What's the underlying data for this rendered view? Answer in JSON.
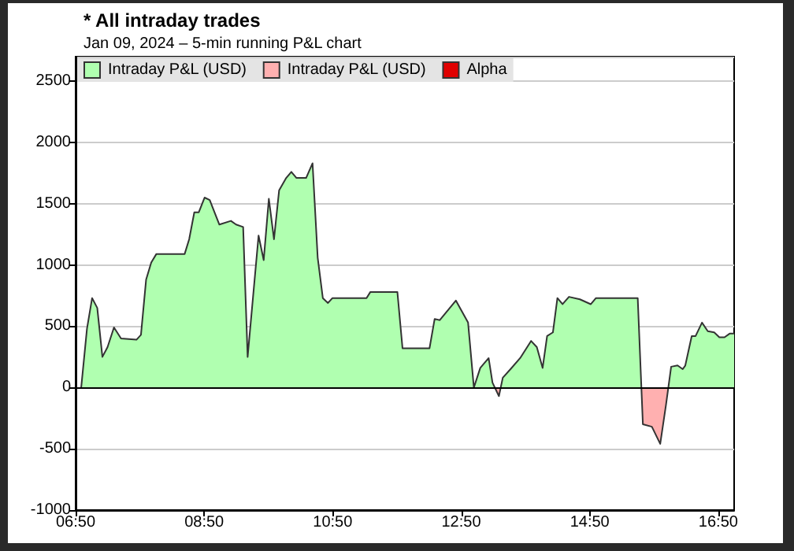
{
  "chart_data": {
    "type": "area",
    "title": "* All intraday trades",
    "subtitle": "Jan 09, 2024 – 5-min running P&L chart",
    "x": [
      6.92,
      7.01,
      7.09,
      7.17,
      7.25,
      7.33,
      7.43,
      7.54,
      7.78,
      7.85,
      7.93,
      8.01,
      8.09,
      8.53,
      8.6,
      8.68,
      8.75,
      8.84,
      8.92,
      9.07,
      9.25,
      9.33,
      9.44,
      9.51,
      9.68,
      9.76,
      9.84,
      9.92,
      10.0,
      10.11,
      10.19,
      10.27,
      10.42,
      10.52,
      10.6,
      10.68,
      10.76,
      10.83,
      11.36,
      11.42,
      11.84,
      11.92,
      12.34,
      12.42,
      12.5,
      12.75,
      12.94,
      13.03,
      13.13,
      13.26,
      13.32,
      13.42,
      13.48,
      13.6,
      13.75,
      13.92,
      14.01,
      14.1,
      14.17,
      14.26,
      14.33,
      14.41,
      14.51,
      14.68,
      14.85,
      14.93,
      15.58,
      15.66,
      15.8,
      15.93,
      16.02,
      16.1,
      16.2,
      16.28,
      16.32,
      16.42,
      16.48,
      16.58,
      16.67,
      16.77,
      16.85,
      16.93,
      17.01,
      17.08
    ],
    "series": [
      {
        "name": "Intraday P&L (USD)",
        "color": "#b0ffb0",
        "values": [
          0,
          480,
          730,
          650,
          250,
          330,
          490,
          400,
          390,
          430,
          880,
          1020,
          1090,
          1090,
          1210,
          1430,
          1430,
          1550,
          1530,
          1330,
          1360,
          1330,
          1310,
          250,
          1240,
          1040,
          1540,
          1210,
          1610,
          1710,
          1760,
          1710,
          1710,
          1830,
          1060,
          730,
          690,
          730,
          730,
          780,
          780,
          320,
          320,
          560,
          550,
          710,
          530,
          0,
          160,
          240,
          40,
          -70,
          80,
          150,
          240,
          380,
          330,
          160,
          420,
          450,
          730,
          680,
          740,
          720,
          680,
          730,
          730,
          -300,
          -320,
          -460,
          -140,
          170,
          180,
          150,
          180,
          420,
          420,
          530,
          460,
          450,
          410,
          410,
          440,
          440
        ]
      },
      {
        "name": "Intraday P&L (USD)",
        "color": "#ffb0b0",
        "x": [
          13.32,
          13.42,
          13.48,
          15.58,
          15.66,
          15.8,
          15.93,
          16.02,
          16.1
        ],
        "values": [
          40,
          -70,
          80,
          730,
          -300,
          -320,
          -460,
          -140,
          170
        ]
      },
      {
        "name": "Alpha",
        "color": "#e00000",
        "values": [
          null,
          null,
          null,
          null,
          null,
          null,
          null,
          null,
          null,
          null,
          null,
          null,
          null,
          null,
          null,
          null,
          null,
          null,
          null,
          null,
          null,
          null,
          null,
          null,
          null,
          null,
          null,
          null,
          null,
          null,
          null,
          null,
          null,
          null,
          null,
          null,
          null,
          null,
          null,
          null,
          null,
          null,
          null,
          null,
          null,
          null,
          null,
          null,
          null,
          null,
          null,
          null,
          null,
          null,
          null,
          null,
          null,
          null,
          null,
          null,
          null,
          null,
          null,
          null,
          null,
          null,
          null,
          null,
          null,
          null,
          null,
          null,
          null,
          null,
          null,
          null,
          null,
          null,
          null,
          null,
          null,
          null,
          null,
          null
        ]
      }
    ],
    "xlim": [
      6.8333,
      17.08
    ],
    "xticks": [
      {
        "value": 6.8333,
        "label": "06:50"
      },
      {
        "value": 8.8333,
        "label": "08:50"
      },
      {
        "value": 10.8333,
        "label": "10:50"
      },
      {
        "value": 12.8333,
        "label": "12:50"
      },
      {
        "value": 14.8333,
        "label": "14:50"
      },
      {
        "value": 16.8333,
        "label": "16:50"
      }
    ],
    "ylim": [
      -1000,
      2700
    ],
    "yticks": [
      -1000,
      -500,
      0,
      500,
      1000,
      1500,
      2000,
      2500
    ],
    "ref_lines": [
      {
        "axis": "y",
        "value": 0,
        "color": "#000000"
      }
    ],
    "grid": "y",
    "legend": "top left"
  }
}
